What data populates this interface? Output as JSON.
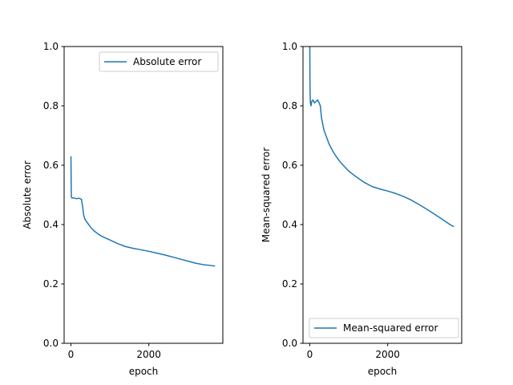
{
  "chart_data": [
    {
      "type": "line",
      "xlabel": "epoch",
      "ylabel": "Absolute error",
      "xlim": [
        -175,
        3900
      ],
      "ylim": [
        0.0,
        1.0
      ],
      "xticks": [
        0,
        2000
      ],
      "yticks": [
        0.0,
        0.2,
        0.4,
        0.6,
        0.8,
        1.0
      ],
      "ytick_labels": [
        "0.0",
        "0.2",
        "0.4",
        "0.6",
        "0.8",
        "1.0"
      ],
      "xtick_labels": [
        "0",
        "2000"
      ],
      "legend_placement": "upper right",
      "grid": false,
      "series": [
        {
          "name": "Absolute error",
          "color": "#1f77b4",
          "x": [
            0,
            5,
            10,
            20,
            50,
            100,
            150,
            200,
            240,
            270,
            300,
            330,
            360,
            400,
            500,
            600,
            700,
            800,
            1000,
            1200,
            1400,
            1600,
            1800,
            2000,
            2200,
            2400,
            2600,
            2800,
            3000,
            3200,
            3400,
            3600,
            3700
          ],
          "y": [
            0.63,
            0.56,
            0.495,
            0.49,
            0.49,
            0.489,
            0.487,
            0.489,
            0.487,
            0.485,
            0.46,
            0.43,
            0.418,
            0.41,
            0.392,
            0.378,
            0.368,
            0.36,
            0.348,
            0.336,
            0.326,
            0.32,
            0.315,
            0.31,
            0.304,
            0.298,
            0.291,
            0.284,
            0.277,
            0.27,
            0.265,
            0.262,
            0.26
          ]
        }
      ]
    },
    {
      "type": "line",
      "xlabel": "epoch",
      "ylabel": "Mean-squared error",
      "xlim": [
        -175,
        3900
      ],
      "ylim": [
        0.0,
        1.0
      ],
      "xticks": [
        0,
        2000
      ],
      "yticks": [
        0.0,
        0.2,
        0.4,
        0.6,
        0.8,
        1.0
      ],
      "ytick_labels": [
        "0.0",
        "0.2",
        "0.4",
        "0.6",
        "0.8",
        "1.0"
      ],
      "xtick_labels": [
        "0",
        "2000"
      ],
      "legend_placement": "lower right",
      "grid": false,
      "series": [
        {
          "name": "Mean-squared error",
          "color": "#1f77b4",
          "x": [
            0,
            2,
            4,
            8,
            15,
            30,
            50,
            80,
            120,
            160,
            200,
            240,
            270,
            300,
            330,
            360,
            400,
            500,
            600,
            700,
            800,
            1000,
            1200,
            1400,
            1600,
            1800,
            2000,
            2200,
            2400,
            2600,
            2800,
            3000,
            3200,
            3400,
            3600,
            3700
          ],
          "y": [
            1.0,
            0.95,
            0.88,
            0.84,
            0.81,
            0.8,
            0.815,
            0.82,
            0.81,
            0.815,
            0.82,
            0.81,
            0.8,
            0.76,
            0.74,
            0.72,
            0.705,
            0.67,
            0.645,
            0.625,
            0.608,
            0.58,
            0.56,
            0.542,
            0.528,
            0.52,
            0.513,
            0.505,
            0.495,
            0.483,
            0.468,
            0.452,
            0.435,
            0.418,
            0.4,
            0.393
          ]
        }
      ]
    }
  ]
}
